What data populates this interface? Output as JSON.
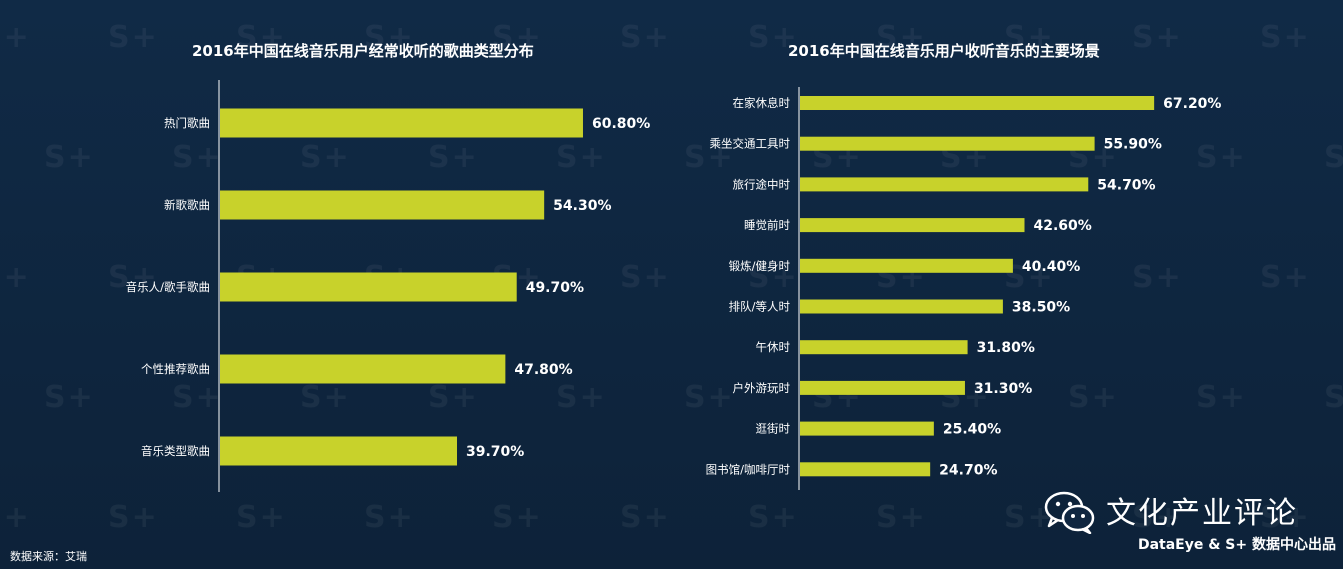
{
  "chart_data": [
    {
      "type": "bar",
      "orientation": "horizontal",
      "title": "2016年中国在线音乐用户经常收听的歌曲类型分布",
      "categories": [
        "热门歌曲",
        "新歌歌曲",
        "音乐人/歌手歌曲",
        "个性推荐歌曲",
        "音乐类型歌曲"
      ],
      "values": [
        60.8,
        54.3,
        49.7,
        47.8,
        39.7
      ],
      "value_labels": [
        "60.80%",
        "54.30%",
        "49.70%",
        "47.80%",
        "39.70%"
      ],
      "xlim": [
        0,
        100
      ],
      "bar_color": "#c8d22b",
      "grid": false,
      "legend": "none"
    },
    {
      "type": "bar",
      "orientation": "horizontal",
      "title": "2016年中国在线音乐用户收听音乐的主要场景",
      "categories": [
        "在家休息时",
        "乘坐交通工具时",
        "旅行途中时",
        "睡觉前时",
        "锻炼/健身时",
        "排队/等人时",
        "午休时",
        "户外游玩时",
        "逛街时",
        "图书馆/咖啡厅时"
      ],
      "values": [
        67.2,
        55.9,
        54.7,
        42.6,
        40.4,
        38.5,
        31.8,
        31.3,
        25.4,
        24.7
      ],
      "value_labels": [
        "67.20%",
        "55.90%",
        "54.70%",
        "42.60%",
        "40.40%",
        "38.50%",
        "31.80%",
        "31.30%",
        "25.40%",
        "24.70%"
      ],
      "xlim": [
        0,
        100
      ],
      "bar_color": "#c8d22b",
      "grid": false,
      "legend": "none"
    }
  ],
  "footer": {
    "source": "数据来源：艾瑞",
    "brand_name": "文化产业评论",
    "brand_sub": "DataEye & S+ 数据中心出品",
    "brand_icon": "wechat-icon"
  },
  "watermark_text": "S+",
  "colors": {
    "background": "#0f2640",
    "bar": "#c8d22b",
    "axis": "#ffffff",
    "text": "#ffffff"
  }
}
